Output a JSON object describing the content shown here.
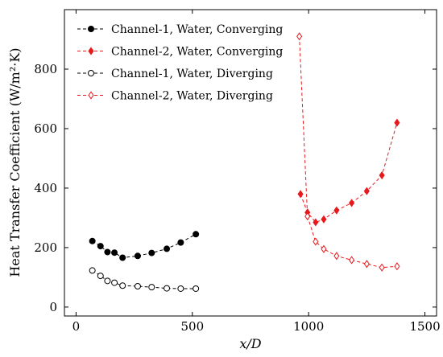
{
  "chart_data": {
    "type": "line",
    "xlabel": "x/D",
    "ylabel": "Heat Transfer Coefficient (W/m²·K)",
    "xlim": [
      -50,
      1550
    ],
    "ylim": [
      -30,
      1000
    ],
    "xticks": [
      0,
      500,
      1000,
      1500
    ],
    "yticks": [
      0,
      200,
      400,
      600,
      800
    ],
    "grid": false,
    "legend_position": "top-left",
    "series": [
      {
        "name": "Channel-1, Water, Converging",
        "color": "#000000",
        "marker": "circle-filled",
        "x": [
          70,
          105,
          135,
          165,
          200,
          265,
          325,
          390,
          450,
          515
        ],
        "y": [
          222,
          205,
          185,
          183,
          166,
          172,
          182,
          196,
          217,
          245
        ]
      },
      {
        "name": "Channel-2, Water, Converging",
        "color": "#e8191d",
        "marker": "diamond-filled",
        "x": [
          965,
          995,
          1030,
          1065,
          1120,
          1185,
          1250,
          1315,
          1380
        ],
        "y": [
          380,
          318,
          285,
          295,
          325,
          350,
          390,
          443,
          620
        ]
      },
      {
        "name": "Channel-1, Water, Diverging",
        "color": "#000000",
        "marker": "circle-open",
        "x": [
          70,
          105,
          135,
          165,
          200,
          265,
          325,
          390,
          450,
          515
        ],
        "y": [
          123,
          105,
          88,
          82,
          72,
          70,
          67,
          63,
          62,
          62
        ]
      },
      {
        "name": "Channel-2, Water, Diverging",
        "color": "#e8191d",
        "marker": "diamond-open",
        "x": [
          960,
          995,
          1030,
          1065,
          1120,
          1185,
          1250,
          1315,
          1380
        ],
        "y": [
          910,
          305,
          220,
          195,
          172,
          158,
          145,
          133,
          137
        ]
      }
    ]
  }
}
